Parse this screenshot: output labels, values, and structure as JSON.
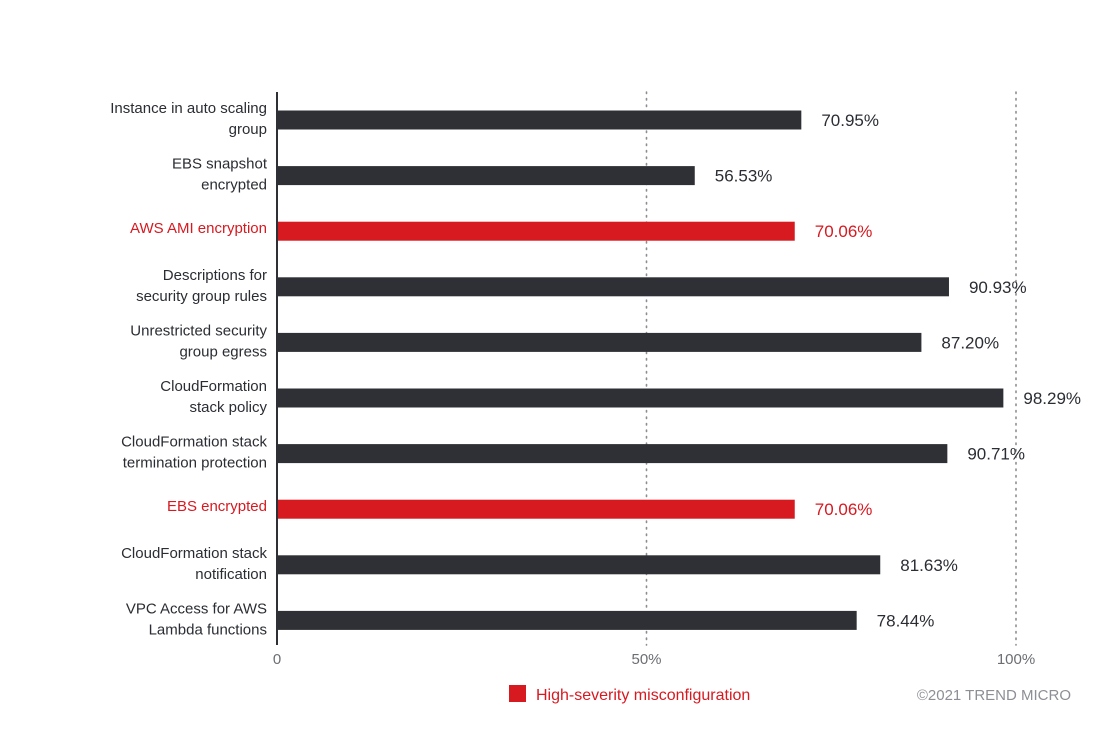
{
  "chart_data": {
    "type": "bar",
    "orientation": "horizontal",
    "categories": [
      [
        "Instance in auto scaling",
        "group"
      ],
      [
        "EBS snapshot",
        "encrypted"
      ],
      [
        "AWS AMI encryption"
      ],
      [
        "Descriptions for",
        "security group rules"
      ],
      [
        "Unrestricted security",
        "group egress"
      ],
      [
        "CloudFormation",
        "stack policy"
      ],
      [
        "CloudFormation stack",
        "termination protection"
      ],
      [
        "EBS encrypted"
      ],
      [
        "CloudFormation stack",
        "notification"
      ],
      [
        "VPC Access for AWS",
        "Lambda functions"
      ]
    ],
    "values": [
      70.95,
      56.53,
      70.06,
      90.93,
      87.2,
      98.29,
      90.71,
      70.06,
      81.63,
      78.44
    ],
    "value_labels": [
      "70.95%",
      "56.53%",
      "70.06%",
      "90.93%",
      "87.20%",
      "98.29%",
      "90.71%",
      "70.06%",
      "81.63%",
      "78.44%"
    ],
    "high_severity": [
      false,
      false,
      true,
      false,
      false,
      false,
      false,
      true,
      false,
      false
    ],
    "xlim": [
      0,
      100
    ],
    "x_ticks": [
      0,
      50,
      100
    ],
    "x_tick_labels": [
      "0",
      "50%",
      "100%"
    ],
    "grid": "dotted vertical at 50% and 100%",
    "legend": {
      "position": "bottom-center",
      "entries": [
        {
          "label": "High-severity misconfiguration",
          "color": "#d71920"
        }
      ]
    },
    "colors": {
      "default": "#2e3035",
      "high_severity": "#d71920"
    }
  },
  "credit": "©2021 TREND MICRO"
}
